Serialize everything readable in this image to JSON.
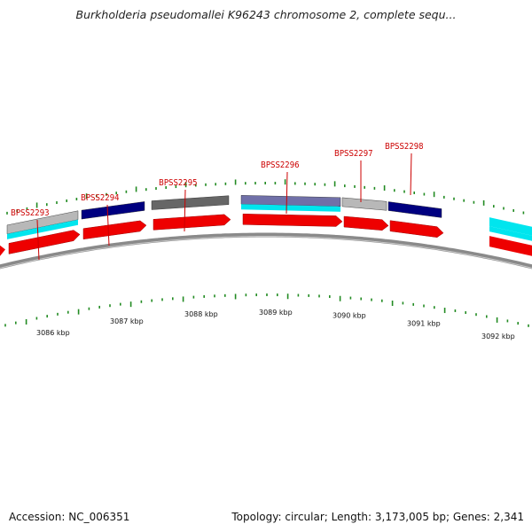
{
  "header": {
    "title": "Burkholderia pseudomallei K96243 chromosome 2, complete sequ..."
  },
  "footer": {
    "accession": "Accession: NC_006351",
    "summary": "Topology: circular; Length: 3,173,005 bp; Genes: 2,341"
  },
  "genes": [
    {
      "name": "BPSS2293",
      "bar_color": "#b8b8b8",
      "track2_color": "#00e5ee"
    },
    {
      "name": "BPSS2294",
      "bar_color": "#000080"
    },
    {
      "name": "BPSS2295",
      "bar_color": "#666666"
    },
    {
      "name": "BPSS2296",
      "bar_color": "#7070a8",
      "track2_color": "#00e5ee"
    },
    {
      "name": "BPSS2297",
      "bar_color": "#b8b8b8"
    },
    {
      "name": "BPSS2298",
      "bar_color": "#000080"
    }
  ],
  "scale_labels": [
    "3086 kbp",
    "3087 kbp",
    "3088 kbp",
    "3089 kbp",
    "3090 kbp",
    "3091 kbp",
    "3092 kbp"
  ],
  "colors": {
    "cds_red": "#ee0000",
    "tick_green": "#228b22",
    "backbone_gray": "#7a7a7a",
    "label_red": "#cc0000"
  }
}
